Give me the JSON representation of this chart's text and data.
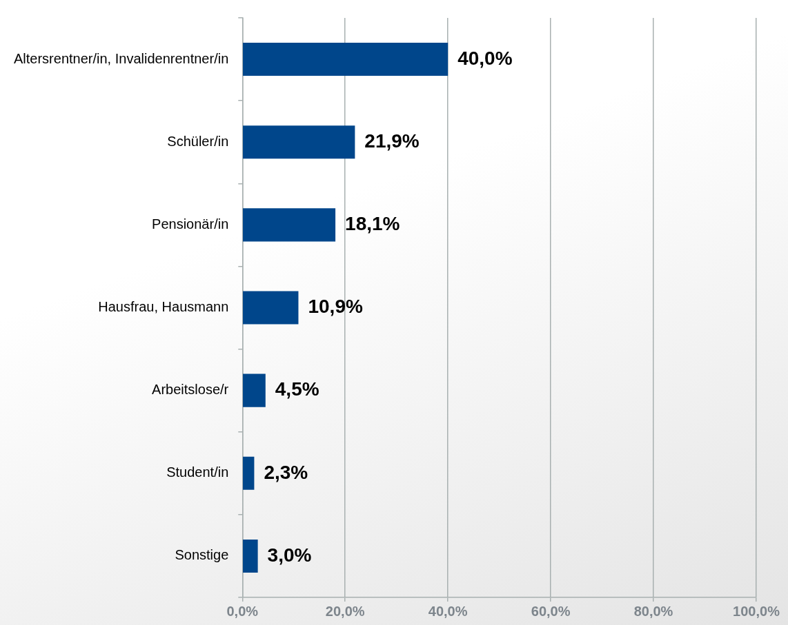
{
  "chart_data": {
    "type": "bar",
    "orientation": "horizontal",
    "categories": [
      "Altersrentner/in, Invalidenrentner/in",
      "Schüler/in",
      "Pensionär/in",
      "Hausfrau, Hausmann",
      "Arbeitslose/r",
      "Student/in",
      "Sonstige"
    ],
    "values": [
      40.0,
      21.9,
      18.1,
      10.9,
      4.5,
      2.3,
      3.0
    ],
    "value_labels": [
      "40,0%",
      "21,9%",
      "18,1%",
      "10,9%",
      "4,5%",
      "2,3%",
      "3,0%"
    ],
    "color": "#00468b",
    "xlim": [
      0,
      100
    ],
    "xticks": [
      {
        "value": 0,
        "label": "0,0%"
      },
      {
        "value": 20,
        "label": "20,0%"
      },
      {
        "value": 40,
        "label": "40,0%"
      },
      {
        "value": 60,
        "label": "60,0%"
      },
      {
        "value": 80,
        "label": "80,0%"
      },
      {
        "value": 100,
        "label": "100,0%"
      }
    ],
    "grid": "x",
    "legend": false
  }
}
